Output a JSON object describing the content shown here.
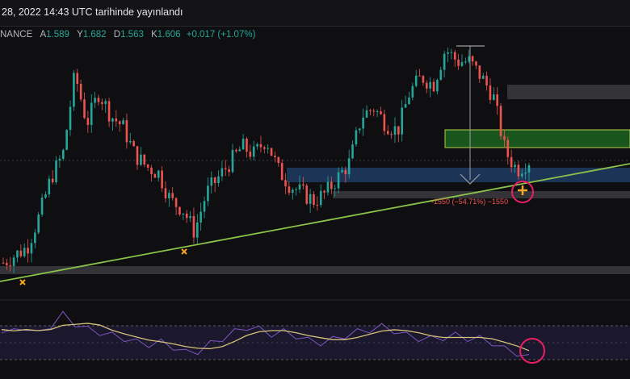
{
  "header": {
    "published": "28, 2022 14:43 UTC tarihinde yayınlandı",
    "exchange": "NANCE",
    "open_label": "A",
    "open_value": "1.589",
    "high_label": "Y",
    "high_value": "1.682",
    "low_label": "D",
    "low_value": "1.563",
    "close_label": "K",
    "close_value": "1.606",
    "change": "+0.017 (+1.07%)"
  },
  "measure_label": "-1550 (−54.71%) −1550",
  "colors": {
    "background": "#0f0f12",
    "up_candle": "#26a69a",
    "down_candle": "#ef5350",
    "trendline": "#8bc34a",
    "resistance_zone": "#1b5e20",
    "support_zone": "#1e3a5f",
    "marker": "#f5a623",
    "circle": "#e91e63",
    "rsi_line": "#7e57c2",
    "rsi_ma": "#d4c27a"
  },
  "chart_data": {
    "type": "candlestick",
    "panes": [
      "price",
      "rsi"
    ],
    "price_path": [
      0.4,
      0.45,
      0.5,
      0.7,
      0.95,
      1.1,
      1.62,
      1.3,
      1.5,
      1.35,
      1.28,
      1.1,
      1.02,
      0.98,
      0.8,
      0.75,
      0.6,
      0.85,
      0.95,
      1.05,
      1.15,
      1.1,
      1.2,
      1.0,
      0.9,
      0.85,
      0.8,
      0.85,
      0.95,
      1.05,
      1.35,
      1.4,
      1.3,
      1.25,
      1.5,
      1.6,
      1.55,
      1.78,
      1.7,
      1.7,
      1.6,
      1.48,
      1.12,
      1.0,
      1.06
    ],
    "rsi_path": [
      55,
      52,
      58,
      50,
      60,
      72,
      62,
      55,
      52,
      48,
      45,
      40,
      38,
      40,
      35,
      28,
      30,
      38,
      45,
      52,
      58,
      55,
      50,
      52,
      48,
      42,
      40,
      43,
      48,
      52,
      55,
      58,
      54,
      48,
      45,
      44,
      46,
      48,
      45,
      44,
      40,
      32,
      28,
      22
    ],
    "annotations": [
      "ascending trendline",
      "support zone",
      "resistance zone",
      "measure tool",
      "swing low markers",
      "circled bounce"
    ]
  }
}
